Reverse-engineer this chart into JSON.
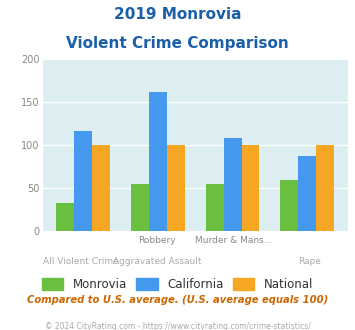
{
  "title_line1": "2019 Monrovia",
  "title_line2": "Violent Crime Comparison",
  "top_labels": [
    "",
    "Robbery",
    "Murder & Mans...",
    ""
  ],
  "bottom_labels": [
    "All Violent Crime",
    "Aggravated Assault",
    "",
    "Rape"
  ],
  "monrovia": [
    33,
    55,
    55,
    60
  ],
  "california": [
    117,
    162,
    108,
    87
  ],
  "national": [
    100,
    100,
    100,
    100
  ],
  "colors": {
    "monrovia": "#6abf40",
    "california": "#4499ee",
    "national": "#f5a623"
  },
  "ylim": [
    0,
    200
  ],
  "yticks": [
    0,
    50,
    100,
    150,
    200
  ],
  "background_color": "#ddeef2",
  "title_color": "#1a5faa",
  "footer_text": "Compared to U.S. average. (U.S. average equals 100)",
  "footer_color": "#cc6600",
  "copyright_text": "© 2024 CityRating.com - https://www.cityrating.com/crime-statistics/",
  "copyright_color": "#aaaaaa",
  "bar_width": 0.24,
  "label_color_top": "#888888",
  "label_color_bot": "#aaaaaa",
  "ytick_color": "#888888"
}
